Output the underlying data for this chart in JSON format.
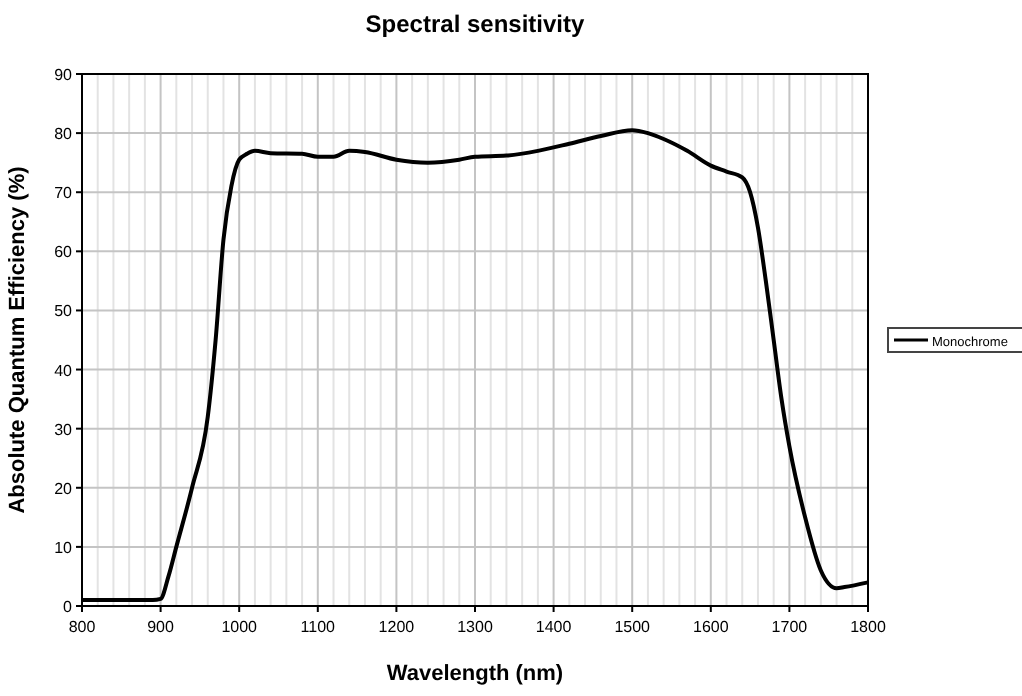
{
  "chart_data": {
    "type": "line",
    "title": "Spectral sensitivity",
    "xlabel": "Wavelength (nm)",
    "ylabel": "Absolute Quantum Efficiency (%)",
    "x": [
      800,
      850,
      890,
      900,
      910,
      920,
      940,
      960,
      970,
      980,
      990,
      1000,
      1010,
      1020,
      1040,
      1080,
      1100,
      1120,
      1140,
      1160,
      1200,
      1240,
      1280,
      1300,
      1340,
      1380,
      1420,
      1460,
      1500,
      1520,
      1540,
      1570,
      1600,
      1620,
      1640,
      1650,
      1660,
      1670,
      1680,
      1690,
      1700,
      1720,
      1740,
      1760,
      1770,
      1800
    ],
    "series": [
      {
        "name": "Monochrome",
        "color": "#000000",
        "values": [
          1,
          1,
          1,
          1.2,
          5,
          10,
          20,
          32,
          45,
          62,
          71,
          75.5,
          76.5,
          77,
          76.6,
          76.5,
          76,
          76,
          77,
          76.8,
          75.5,
          75,
          75.5,
          76,
          76.2,
          77,
          78.2,
          79.5,
          80.5,
          80,
          79,
          77,
          74.5,
          73.5,
          72.5,
          70,
          64,
          55,
          45,
          35,
          27,
          15,
          6,
          3,
          3.2,
          4
        ]
      }
    ],
    "xlim": [
      800,
      1800
    ],
    "xticks": [
      800,
      900,
      1000,
      1100,
      1200,
      1300,
      1400,
      1500,
      1600,
      1700,
      1800
    ],
    "ylim": [
      0,
      90
    ],
    "yticks": [
      0,
      10,
      20,
      30,
      40,
      50,
      60,
      70,
      80,
      90
    ],
    "grid": true,
    "legend": "right",
    "marker": "none",
    "line_style": "solid"
  }
}
